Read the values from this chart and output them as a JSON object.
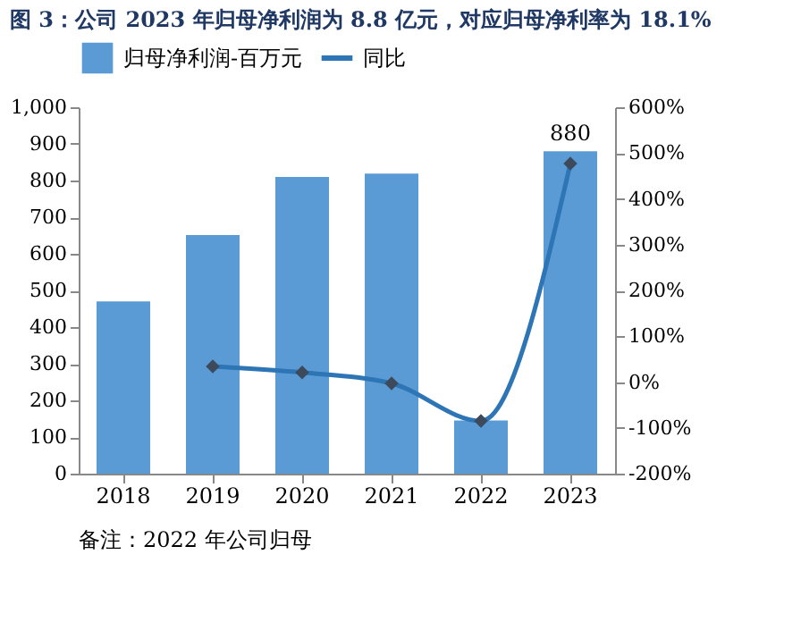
{
  "chart_data": {
    "type": "bar",
    "title": "图 3：公司 2023 年归母净利润为 8.8 亿元，对应归母净利率为 18.1%",
    "categories": [
      "2018",
      "2019",
      "2020",
      "2021",
      "2022",
      "2023"
    ],
    "series": [
      {
        "name": "归母净利润-百万元",
        "type": "bar",
        "color": "#5b9bd5",
        "values": [
          470,
          651,
          810,
          819,
          145,
          880
        ],
        "value_labels": [
          null,
          null,
          null,
          null,
          null,
          "880"
        ]
      },
      {
        "name": "同比",
        "type": "line",
        "axis": "y2",
        "color": "#2e75b6",
        "marker": "diamond",
        "values": [
          null,
          34,
          21,
          -3,
          -85,
          477
        ]
      }
    ],
    "ylim": [
      0,
      1000
    ],
    "yticks": [
      0,
      100,
      200,
      300,
      400,
      500,
      600,
      700,
      800,
      900,
      {
        "value": 1000,
        "label": "1,000"
      }
    ],
    "y2lim": [
      -200,
      600
    ],
    "y2ticks": [
      {
        "value": -200,
        "label": "-200%"
      },
      {
        "value": -100,
        "label": "-100%"
      },
      {
        "value": 0,
        "label": "0%"
      },
      {
        "value": 100,
        "label": "100%"
      },
      {
        "value": 200,
        "label": "200%"
      },
      {
        "value": 300,
        "label": "300%"
      },
      {
        "value": 400,
        "label": "400%"
      },
      {
        "value": 500,
        "label": "500%"
      },
      {
        "value": 600,
        "label": "600%"
      }
    ],
    "grid": false,
    "legend": "top",
    "annotations": [
      "备注：2022 年公司归母"
    ]
  }
}
